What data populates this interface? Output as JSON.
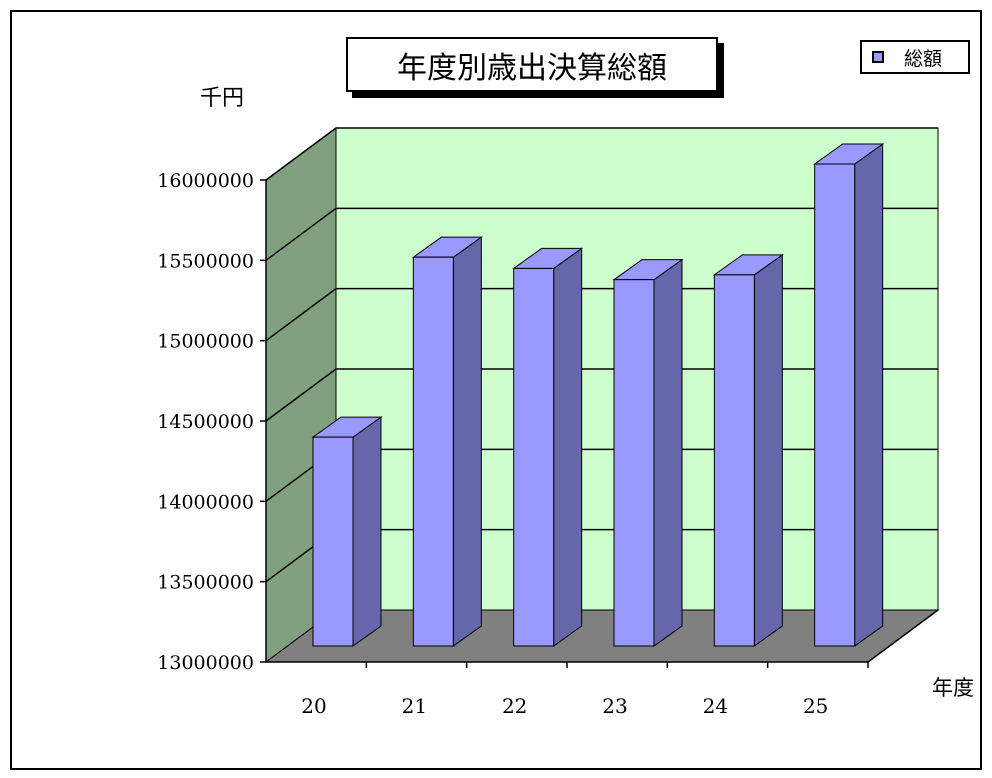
{
  "chart_data": {
    "type": "bar",
    "title": "年度別歳出決算総額",
    "ylabel": "千円",
    "xlabel": "年度",
    "categories": [
      "20",
      "21",
      "22",
      "23",
      "24",
      "25"
    ],
    "series": [
      {
        "name": "総額",
        "values": [
          14300000,
          15420000,
          15350000,
          15280000,
          15310000,
          16000000
        ]
      }
    ],
    "ylim": [
      13000000,
      16000000
    ],
    "yticks": [
      13000000,
      13500000,
      14000000,
      14500000,
      15000000,
      15500000,
      16000000
    ],
    "grid": true,
    "legend": "top-right",
    "colors": {
      "bar_front": "#9999ff",
      "bar_side": "#6666aa",
      "back_wall": "#ccffcc",
      "side_wall": "#80a080",
      "floor": "#808080"
    }
  }
}
